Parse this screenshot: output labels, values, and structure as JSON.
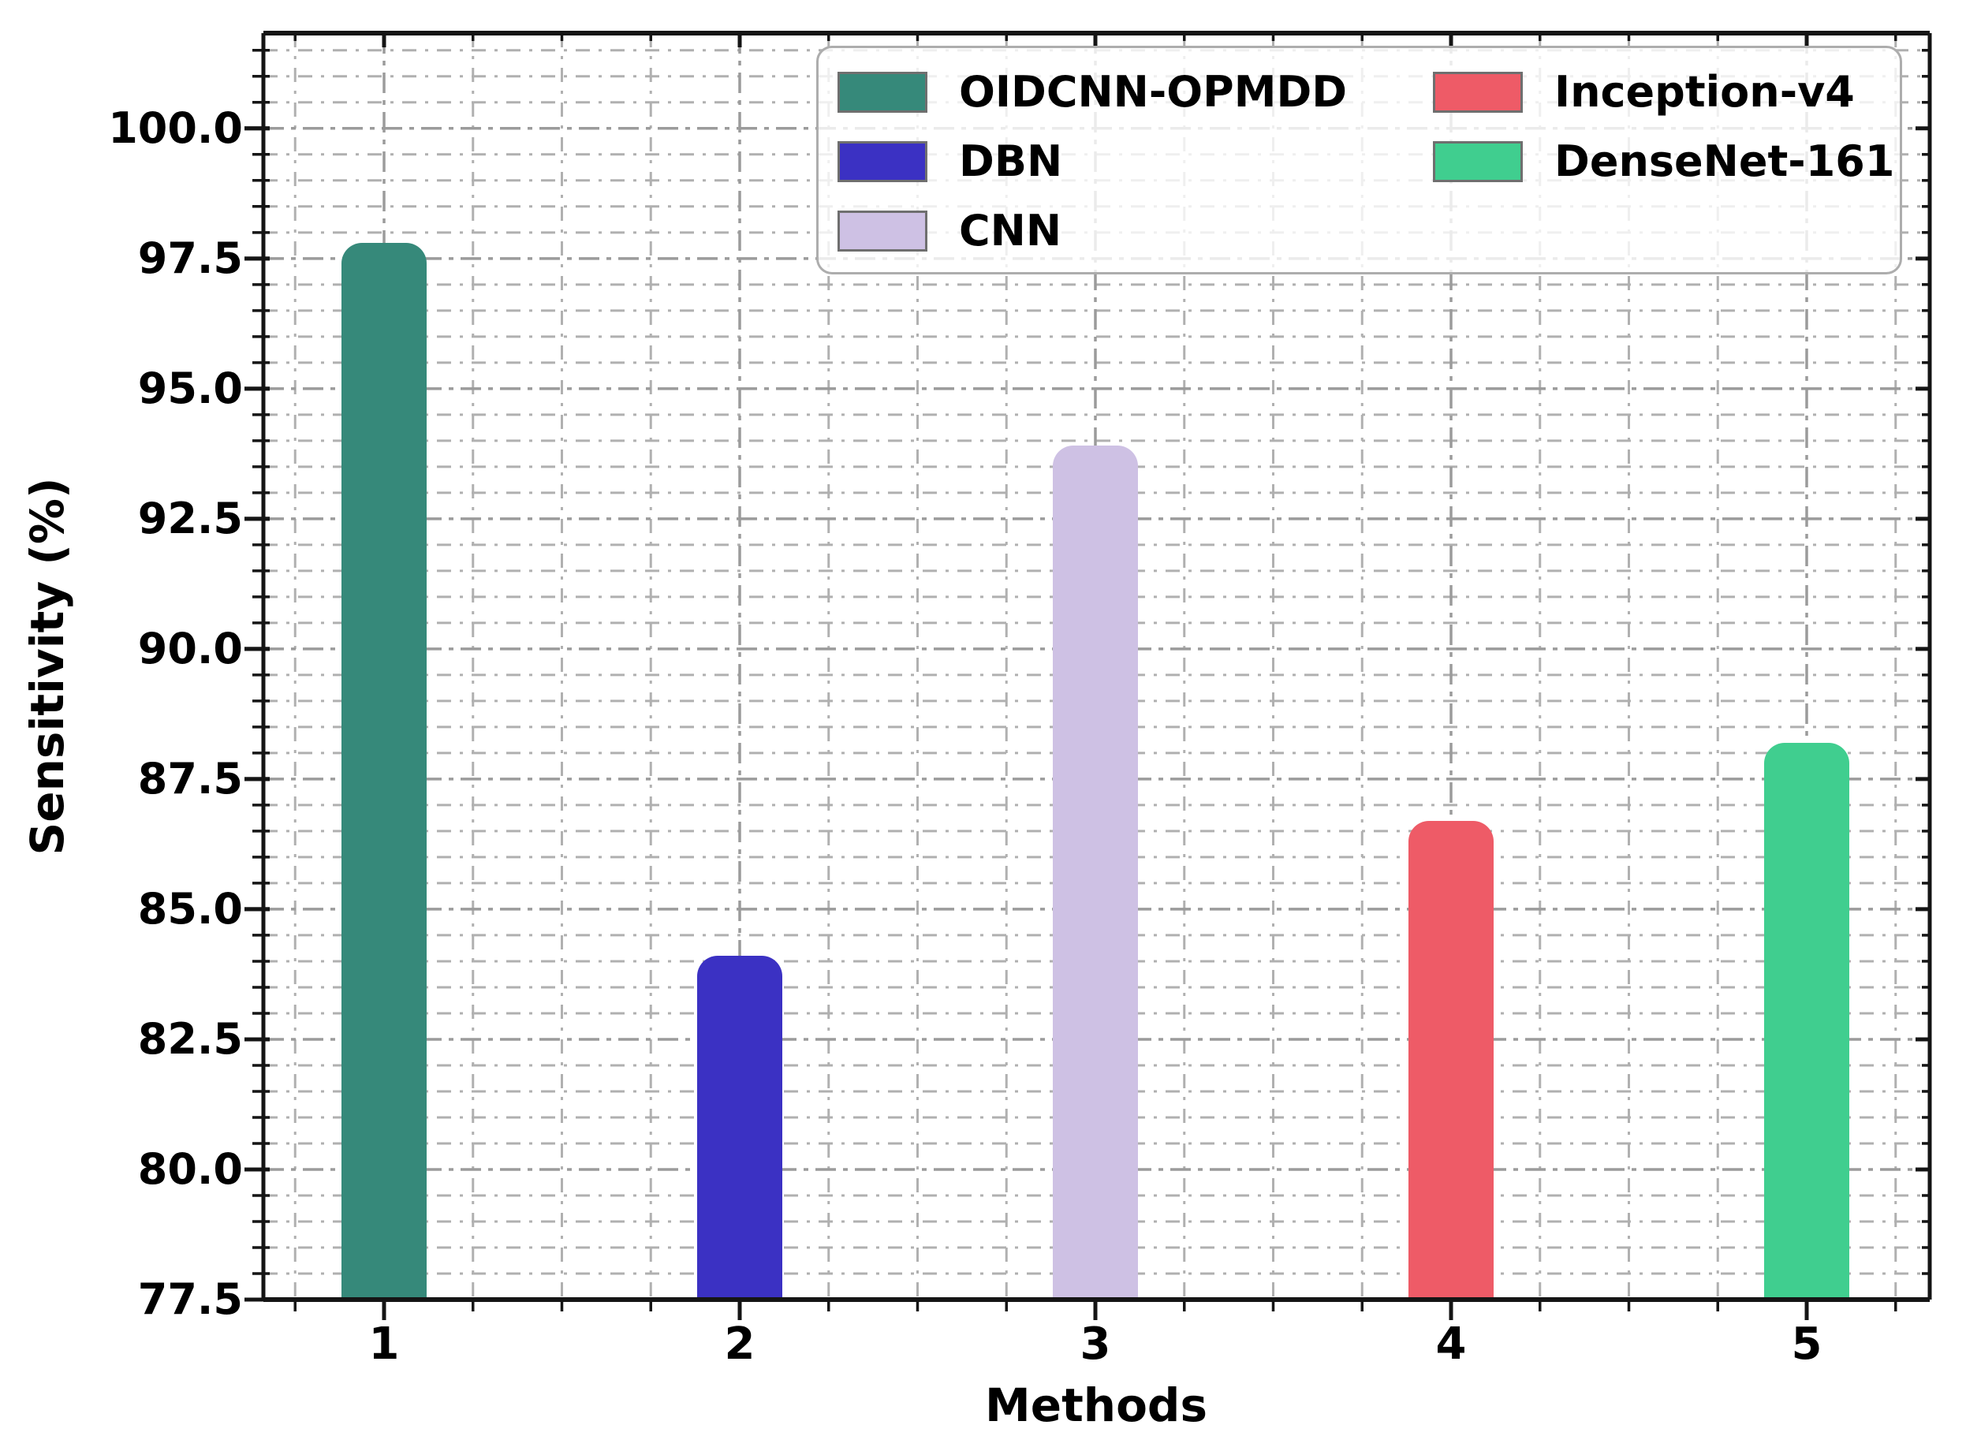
{
  "chart_data": {
    "type": "bar",
    "title": "",
    "xlabel": "Methods",
    "ylabel": "Sensitivity (%)",
    "categories": [
      "1",
      "2",
      "3",
      "4",
      "5"
    ],
    "series": [
      {
        "name": "Sensitivity",
        "values": [
          97.8,
          84.1,
          93.9,
          86.7,
          88.2
        ]
      }
    ],
    "bars": [
      {
        "category": "1",
        "label": "OIDCNN-OPMDD",
        "value": 97.8,
        "color": "#36897A"
      },
      {
        "category": "2",
        "label": "DBN",
        "value": 84.1,
        "color": "#3B31C3"
      },
      {
        "category": "3",
        "label": "CNN",
        "value": 93.9,
        "color": "#CEC1E4"
      },
      {
        "category": "4",
        "label": "Inception-v4",
        "value": 86.7,
        "color": "#EE5B67"
      },
      {
        "category": "5",
        "label": "DenseNet-161",
        "value": 88.2,
        "color": "#40CE8F"
      }
    ],
    "ylim": [
      77.5,
      101.83
    ],
    "ytick_major": [
      77.5,
      80.0,
      82.5,
      85.0,
      87.5,
      90.0,
      92.5,
      95.0,
      97.5,
      100.0
    ],
    "ytick_labels": [
      "77.5",
      "80.0",
      "82.5",
      "85.0",
      "87.5",
      "90.0",
      "92.5",
      "95.0",
      "97.5",
      "100.0"
    ],
    "ytick_minor_step": 0.5,
    "xtick_labels": [
      "1",
      "2",
      "3",
      "4",
      "5"
    ],
    "xtick_minor_step": 0.25,
    "grid": true,
    "grid_style": "dashed",
    "legend": {
      "position": "upper center",
      "ncol": 2,
      "entries": [
        "OIDCNN-OPMDD",
        "DBN",
        "CNN",
        "Inception-v4",
        "DenseNet-161"
      ]
    },
    "colors": {
      "axis": "#151515",
      "grid_major": "#9b9b9b",
      "grid_minor": "#b0b0b0",
      "legend_border": "#adadad",
      "swatch_border": "#6f6f6f",
      "text": "#000000"
    }
  }
}
